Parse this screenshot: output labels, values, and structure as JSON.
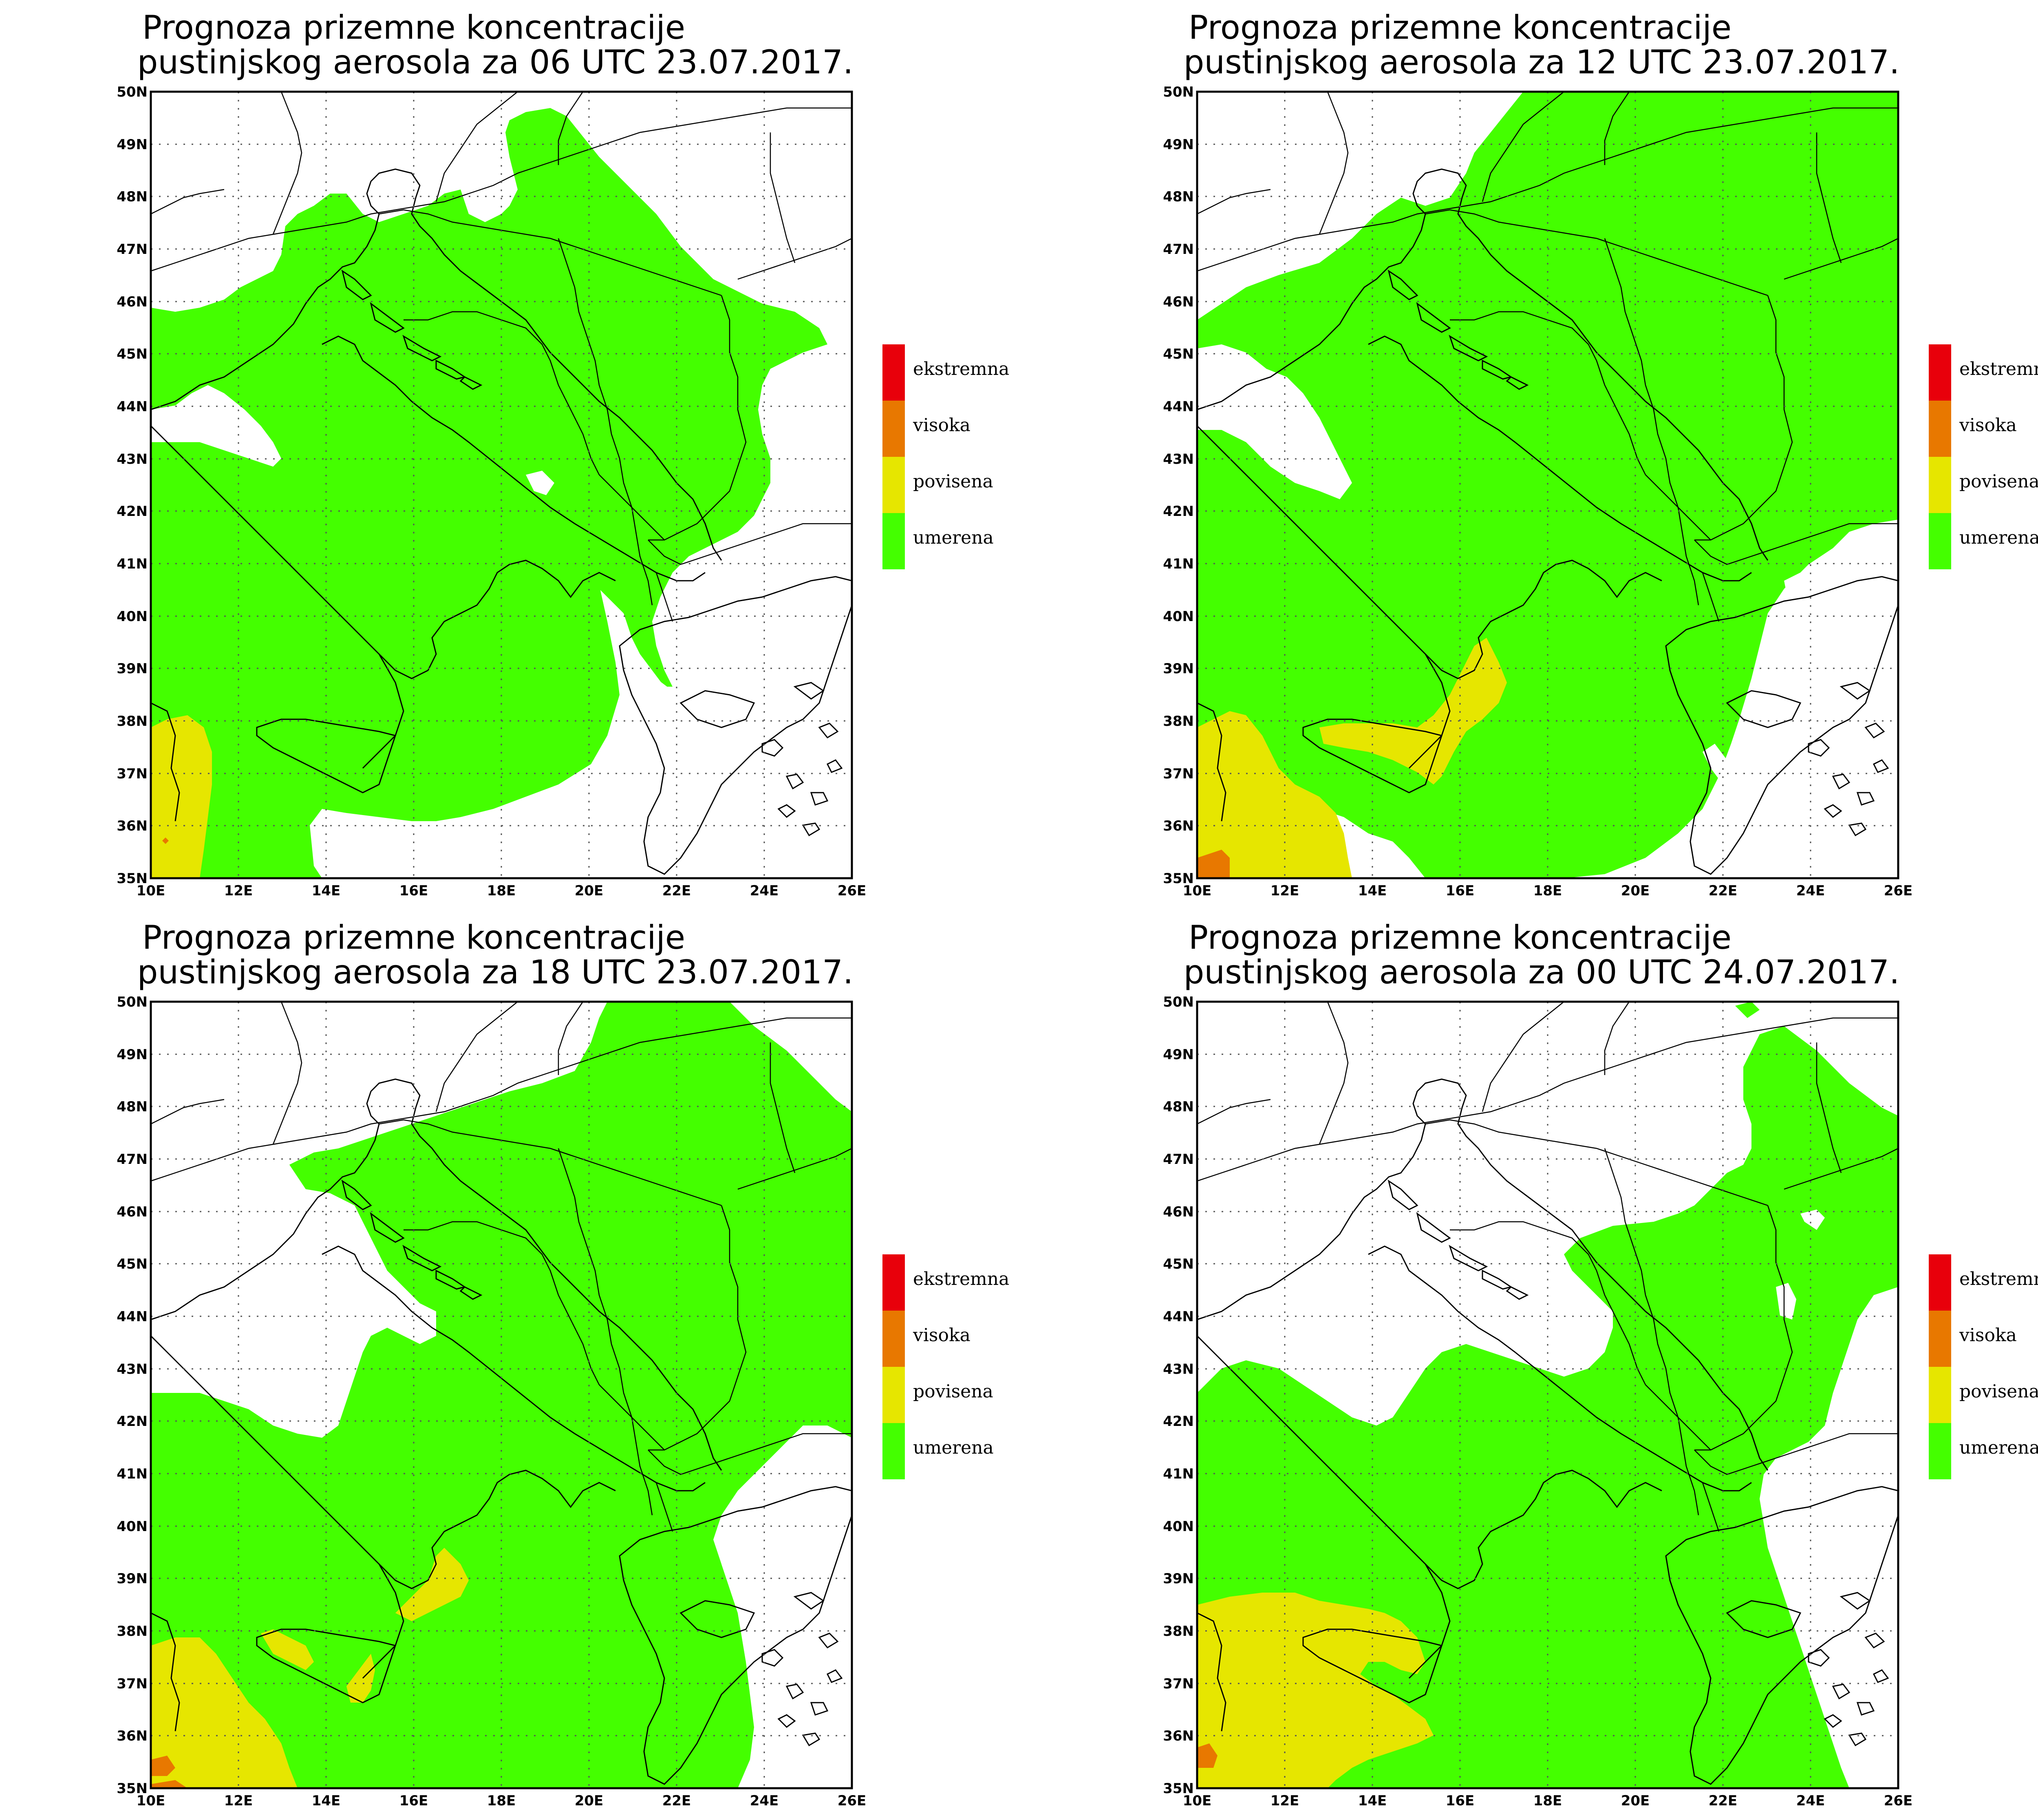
{
  "panels": [
    {
      "title_line1": "Prognoza prizemne koncentracije",
      "title_line2": "pustinjskog aerosola za 06 UTC 23.07.2017."
    },
    {
      "title_line1": "Prognoza prizemne koncentracije",
      "title_line2": "pustinjskog aerosola za 12 UTC 23.07.2017."
    },
    {
      "title_line1": "Prognoza prizemne koncentracije",
      "title_line2": "pustinjskog aerosola za 18 UTC 23.07.2017."
    },
    {
      "title_line1": "Prognoza prizemne koncentracije",
      "title_line2": "pustinjskog aerosola za 00 UTC 24.07.2017."
    }
  ],
  "axes": {
    "lat_ticks": [
      "50N",
      "49N",
      "48N",
      "47N",
      "46N",
      "45N",
      "44N",
      "43N",
      "42N",
      "41N",
      "40N",
      "39N",
      "38N",
      "37N",
      "36N",
      "35N"
    ],
    "lon_ticks": [
      "10E",
      "12E",
      "14E",
      "16E",
      "18E",
      "20E",
      "22E",
      "24E",
      "26E"
    ],
    "lon_range": [
      10,
      26
    ],
    "lat_range": [
      35,
      50
    ],
    "grid": "dotted"
  },
  "legend": {
    "items": [
      {
        "label": "ekstremna",
        "color": "#e8000b"
      },
      {
        "label": "visoka",
        "color": "#e87800"
      },
      {
        "label": "povisena",
        "color": "#e6e600"
      },
      {
        "label": "umerena",
        "color": "#44ff00"
      }
    ]
  },
  "colors": {
    "umerena": "#44ff00",
    "povisena": "#e6e600",
    "visoka": "#e87800",
    "ekstremna": "#e8000b"
  }
}
